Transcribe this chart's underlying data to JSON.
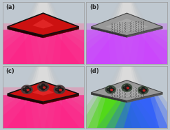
{
  "bg_color": "#bfc8d0",
  "panels": [
    "(a)",
    "(b)",
    "(c)",
    "(d)"
  ],
  "label_fontsize": 6,
  "label_color": "#222222",
  "beam_colors": {
    "a_pink": "#ff2288",
    "b_purple": "#cc44ff",
    "d_green": "#44dd00",
    "d_blue": "#2255ff"
  },
  "plate_a_top": "#cc1111",
  "plate_a_edge_l": "#220000",
  "plate_a_edge_r": "#440000",
  "plate_b_top": "#aaaaaa",
  "plate_b_edge_l": "#333333",
  "plate_b_edge_r": "#555555"
}
